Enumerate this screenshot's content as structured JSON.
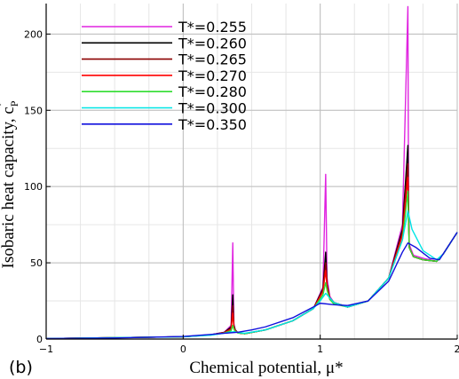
{
  "chart_data": {
    "type": "line",
    "panel_label": "(b)",
    "xlabel": "Chemical potential, μ*",
    "ylabel": "Isobaric heat capacity, c",
    "ylabel_sub": "P",
    "ylabel_sup": "*",
    "xlim": [
      -1,
      2
    ],
    "ylim": [
      0,
      220
    ],
    "xticks": [
      -1,
      0,
      1,
      2
    ],
    "yticks": [
      0,
      50,
      100,
      150,
      200
    ],
    "x_minor_step": 0.25,
    "y_minor_step": 25,
    "grid": true,
    "legend_position": "top-left",
    "series": [
      {
        "name": "T*=0.255",
        "color": "#e024e0",
        "x": [
          -1.0,
          0.0,
          0.2,
          0.3,
          0.35,
          0.362,
          0.37,
          0.38,
          0.4,
          0.45,
          0.6,
          0.8,
          0.95,
          1.02,
          1.04,
          1.05,
          1.07,
          1.1,
          1.2,
          1.35,
          1.5,
          1.6,
          1.64,
          1.645,
          1.65,
          1.68,
          1.75,
          1.85,
          1.9,
          2.0
        ],
        "y": [
          0.3,
          1.5,
          2.8,
          4.5,
          9,
          63,
          10,
          6,
          4,
          3.5,
          6,
          12,
          20,
          34,
          108,
          40,
          28,
          24,
          21,
          25,
          40,
          75,
          218,
          90,
          62,
          55,
          53,
          51,
          56,
          70
        ]
      },
      {
        "name": "T*=0.260",
        "color": "#000000",
        "x": [
          -1.0,
          0.0,
          0.2,
          0.3,
          0.35,
          0.362,
          0.37,
          0.38,
          0.4,
          0.45,
          0.6,
          0.8,
          0.95,
          1.02,
          1.04,
          1.05,
          1.07,
          1.1,
          1.2,
          1.35,
          1.5,
          1.6,
          1.64,
          1.645,
          1.65,
          1.68,
          1.75,
          1.85,
          1.9,
          2.0
        ],
        "y": [
          0.3,
          1.5,
          2.8,
          4.4,
          8,
          29,
          9,
          6,
          4,
          3.5,
          6,
          12,
          20,
          33,
          57,
          36,
          27,
          24,
          21,
          25,
          40,
          72,
          127,
          82,
          60,
          54,
          52,
          51,
          56,
          70
        ]
      },
      {
        "name": "T*=0.265",
        "color": "#8b0000",
        "x": [
          -1.0,
          0.0,
          0.2,
          0.3,
          0.35,
          0.362,
          0.37,
          0.38,
          0.4,
          0.45,
          0.6,
          0.8,
          0.95,
          1.02,
          1.04,
          1.05,
          1.07,
          1.1,
          1.2,
          1.35,
          1.5,
          1.6,
          1.64,
          1.645,
          1.65,
          1.68,
          1.75,
          1.85,
          1.9,
          2.0
        ],
        "y": [
          0.3,
          1.5,
          2.7,
          4.3,
          7,
          22,
          8,
          5.5,
          4,
          3.5,
          6,
          12,
          20,
          32,
          50,
          35,
          27,
          24,
          21,
          25,
          40,
          70,
          115,
          80,
          60,
          54,
          52,
          51,
          56,
          70
        ]
      },
      {
        "name": "T*=0.270",
        "color": "#ff0000",
        "x": [
          -1.0,
          0.0,
          0.2,
          0.3,
          0.35,
          0.362,
          0.37,
          0.38,
          0.4,
          0.45,
          0.6,
          0.8,
          0.95,
          1.02,
          1.04,
          1.05,
          1.07,
          1.1,
          1.2,
          1.35,
          1.5,
          1.6,
          1.64,
          1.645,
          1.65,
          1.68,
          1.75,
          1.85,
          1.9,
          2.0
        ],
        "y": [
          0.3,
          1.5,
          2.7,
          4.2,
          6.5,
          17,
          7.5,
          5.5,
          4,
          3.5,
          6,
          12,
          20,
          31,
          45,
          34,
          26,
          24,
          21,
          25,
          40,
          68,
          106,
          78,
          60,
          54,
          52,
          51,
          56,
          70
        ]
      },
      {
        "name": "T*=0.280",
        "color": "#2fdc2f",
        "x": [
          -1.0,
          0.0,
          0.2,
          0.3,
          0.35,
          0.362,
          0.37,
          0.38,
          0.4,
          0.45,
          0.6,
          0.8,
          0.95,
          1.02,
          1.04,
          1.05,
          1.07,
          1.1,
          1.2,
          1.35,
          1.5,
          1.6,
          1.64,
          1.645,
          1.65,
          1.68,
          1.75,
          1.85,
          1.9,
          2.0
        ],
        "y": [
          0.3,
          1.5,
          2.6,
          4.0,
          5.5,
          9,
          6.5,
          5,
          4,
          3.5,
          6,
          12,
          20,
          29,
          37,
          32,
          26,
          23,
          21,
          25,
          40,
          65,
          97,
          75,
          60,
          54,
          52,
          51,
          56,
          70
        ]
      },
      {
        "name": "T*=0.300",
        "color": "#00e5e5",
        "x": [
          -1.0,
          0.0,
          0.2,
          0.3,
          0.35,
          0.37,
          0.4,
          0.45,
          0.6,
          0.8,
          0.95,
          1.0,
          1.04,
          1.07,
          1.1,
          1.2,
          1.35,
          1.5,
          1.6,
          1.64,
          1.67,
          1.75,
          1.85,
          1.9,
          2.0
        ],
        "y": [
          0.3,
          1.5,
          2.5,
          3.8,
          4.6,
          4.8,
          4.3,
          3.8,
          6,
          12,
          20,
          25,
          30,
          27,
          24,
          21,
          25,
          40,
          65,
          84,
          72,
          58,
          52,
          56,
          70
        ]
      },
      {
        "name": "T*=0.350",
        "color": "#1010dd",
        "x": [
          -1.0,
          -0.5,
          0.0,
          0.2,
          0.3,
          0.4,
          0.5,
          0.6,
          0.8,
          0.95,
          1.0,
          1.1,
          1.2,
          1.35,
          1.5,
          1.6,
          1.64,
          1.7,
          1.8,
          1.87,
          2.0
        ],
        "y": [
          0.3,
          0.7,
          1.7,
          3.0,
          3.8,
          4.5,
          6.0,
          8.0,
          14,
          21,
          23.5,
          22.5,
          22,
          25,
          38,
          57,
          63,
          60,
          53,
          52,
          70
        ]
      }
    ]
  }
}
